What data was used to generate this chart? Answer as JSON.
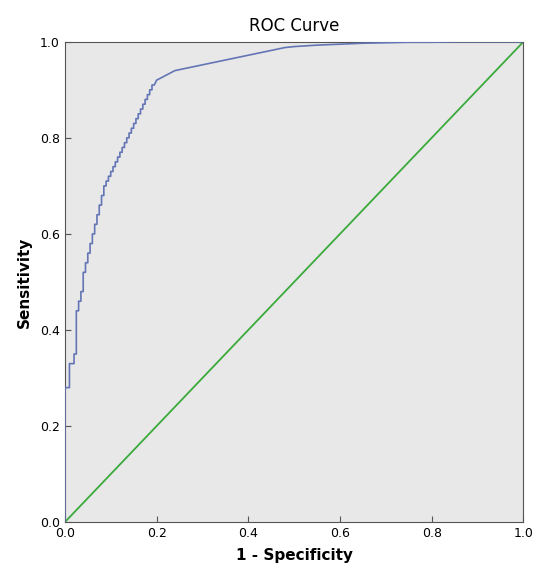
{
  "title": "ROC Curve",
  "xlabel": "1 - Specificity",
  "ylabel": "Sensitivity",
  "xlim": [
    0.0,
    1.0
  ],
  "ylim": [
    0.0,
    1.0
  ],
  "xticks": [
    0.0,
    0.2,
    0.4,
    0.6,
    0.8,
    1.0
  ],
  "yticks": [
    0.0,
    0.2,
    0.4,
    0.6,
    0.8,
    1.0
  ],
  "plot_bg_color": "#e8e8e8",
  "fig_bg_color": "#ffffff",
  "roc_color": "#6375b5",
  "diagonal_color": "#3aaa3a",
  "title_fontsize": 12,
  "label_fontsize": 11,
  "tick_fontsize": 9,
  "roc_x": [
    0.0,
    0.0,
    0.01,
    0.01,
    0.02,
    0.02,
    0.025,
    0.025,
    0.03,
    0.03,
    0.035,
    0.035,
    0.04,
    0.04,
    0.045,
    0.045,
    0.05,
    0.05,
    0.055,
    0.055,
    0.06,
    0.06,
    0.065,
    0.065,
    0.07,
    0.07,
    0.075,
    0.075,
    0.08,
    0.08,
    0.085,
    0.085,
    0.09,
    0.09,
    0.095,
    0.095,
    0.1,
    0.1,
    0.105,
    0.105,
    0.11,
    0.11,
    0.115,
    0.115,
    0.12,
    0.12,
    0.125,
    0.125,
    0.13,
    0.13,
    0.135,
    0.135,
    0.14,
    0.14,
    0.145,
    0.145,
    0.15,
    0.15,
    0.155,
    0.155,
    0.16,
    0.16,
    0.165,
    0.165,
    0.17,
    0.17,
    0.175,
    0.175,
    0.18,
    0.18,
    0.185,
    0.185,
    0.19,
    0.19,
    0.195,
    0.2,
    0.21,
    0.22,
    0.23,
    0.24,
    0.25,
    0.26,
    0.27,
    0.28,
    0.29,
    0.3,
    0.32,
    0.34,
    0.36,
    0.38,
    0.4,
    0.42,
    0.44,
    0.46,
    0.48,
    0.5,
    0.55,
    0.6,
    0.65,
    0.7,
    0.75,
    0.8,
    0.85,
    0.9,
    0.95,
    1.0
  ],
  "roc_y": [
    0.0,
    0.28,
    0.28,
    0.33,
    0.33,
    0.35,
    0.35,
    0.44,
    0.44,
    0.46,
    0.46,
    0.48,
    0.48,
    0.52,
    0.52,
    0.54,
    0.54,
    0.56,
    0.56,
    0.58,
    0.58,
    0.6,
    0.6,
    0.62,
    0.62,
    0.64,
    0.64,
    0.66,
    0.66,
    0.68,
    0.68,
    0.7,
    0.7,
    0.71,
    0.71,
    0.72,
    0.72,
    0.73,
    0.73,
    0.74,
    0.74,
    0.75,
    0.75,
    0.76,
    0.76,
    0.77,
    0.77,
    0.78,
    0.78,
    0.79,
    0.79,
    0.8,
    0.8,
    0.81,
    0.81,
    0.82,
    0.82,
    0.83,
    0.83,
    0.84,
    0.84,
    0.85,
    0.85,
    0.86,
    0.86,
    0.87,
    0.87,
    0.88,
    0.88,
    0.89,
    0.89,
    0.9,
    0.9,
    0.91,
    0.91,
    0.92,
    0.925,
    0.93,
    0.935,
    0.94,
    0.942,
    0.944,
    0.946,
    0.948,
    0.95,
    0.952,
    0.956,
    0.96,
    0.964,
    0.968,
    0.972,
    0.976,
    0.98,
    0.984,
    0.988,
    0.99,
    0.993,
    0.995,
    0.997,
    0.998,
    0.999,
    0.999,
    1.0,
    1.0,
    1.0,
    1.0
  ]
}
